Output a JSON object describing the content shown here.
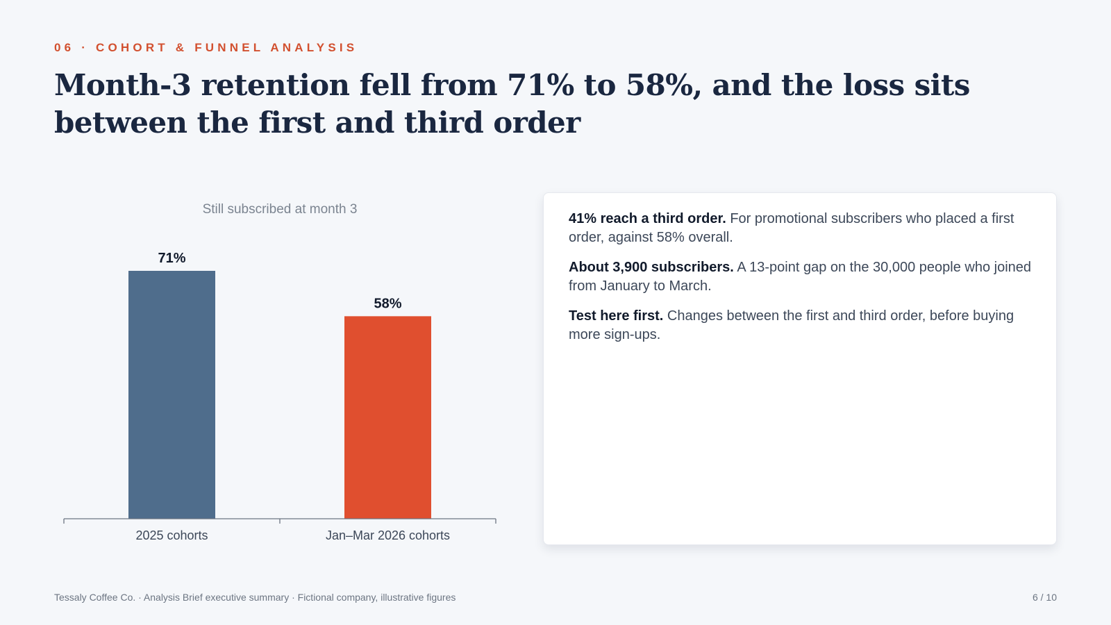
{
  "slide": {
    "eyebrow": "06 · COHORT & FUNNEL ANALYSIS",
    "headline": "Month-3 retention fell from 71% to 58%, and the loss sits between the first and third order",
    "footer": "Tessaly Coffee Co. · Analysis Brief executive summary · Fictional company, illustrative figures",
    "page": "6 / 10"
  },
  "chart_data": {
    "type": "bar",
    "title": "Still subscribed at month 3",
    "categories": [
      "2025 cohorts",
      "Jan–Mar 2026 cohorts"
    ],
    "values": [
      71,
      58
    ],
    "value_labels": [
      "71%",
      "58%"
    ],
    "colors": [
      "#4f6d8c",
      "#e04f2f"
    ],
    "ylim": [
      0,
      71
    ],
    "grid": false,
    "xlabel": "",
    "ylabel": ""
  },
  "card": {
    "points": [
      {
        "lead": "41% reach a third order.",
        "text": " For promotional subscribers who placed a first order, against 58% overall."
      },
      {
        "lead": "About 3,900 subscribers.",
        "text": " A 13-point gap on the 30,000 people who joined from January to March."
      },
      {
        "lead": "Test here first.",
        "text": " Changes between the first and third order, before buying more sign-ups."
      }
    ]
  },
  "colors": {
    "accent": "#d2502f",
    "headline": "#1a2740",
    "background": "#f5f7fa"
  }
}
